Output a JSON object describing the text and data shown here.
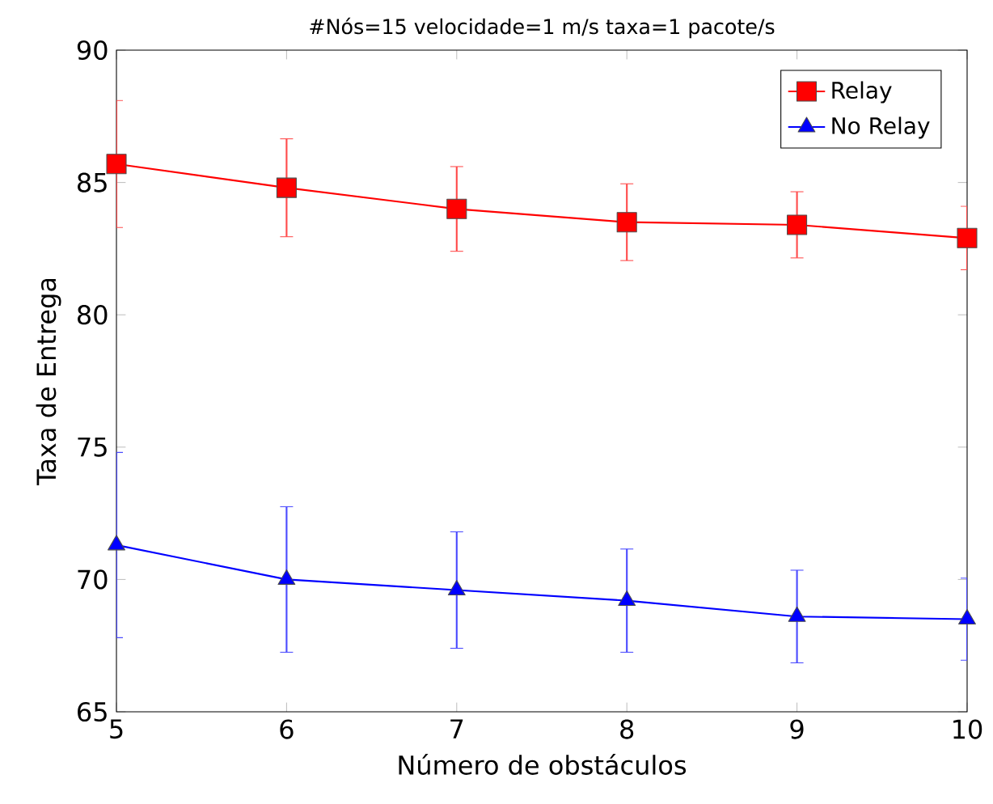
{
  "chart_data": {
    "type": "line",
    "title": "#Nós=15 velocidade=1 m/s taxa=1 pacote/s",
    "xlabel": "Número de obstáculos",
    "ylabel": "Taxa de Entrega",
    "x": [
      5,
      6,
      7,
      8,
      9,
      10
    ],
    "series": [
      {
        "name": "Relay",
        "color": "#ff0000",
        "marker": "square",
        "values": [
          85.7,
          84.8,
          84.0,
          83.5,
          83.4,
          82.9
        ],
        "errors": [
          2.4,
          1.85,
          1.6,
          1.45,
          1.25,
          1.2
        ]
      },
      {
        "name": "No Relay",
        "color": "#0000ff",
        "marker": "triangle",
        "values": [
          71.3,
          70.0,
          69.6,
          69.2,
          68.6,
          68.5
        ],
        "errors": [
          3.5,
          2.75,
          2.2,
          1.95,
          1.75,
          1.55
        ]
      }
    ],
    "xlim": [
      5,
      10
    ],
    "ylim": [
      65,
      90
    ],
    "xticks": [
      5,
      6,
      7,
      8,
      9,
      10
    ],
    "yticks": [
      65,
      70,
      75,
      80,
      85,
      90
    ],
    "legend": "top right",
    "grid": false
  }
}
